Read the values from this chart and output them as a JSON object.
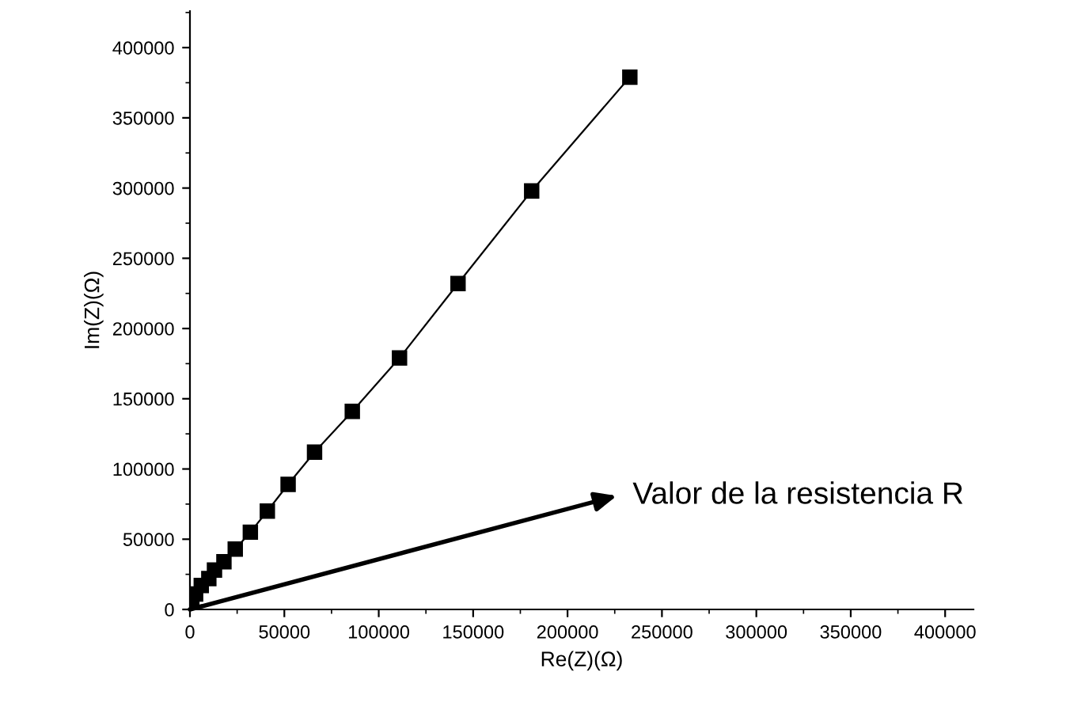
{
  "chart_data": {
    "type": "line",
    "xlabel": "Re(Z)(Ω)",
    "ylabel": "Im(Z)(Ω)",
    "x": [
      0,
      1000,
      3000,
      6000,
      10000,
      13000,
      18000,
      24000,
      32000,
      41000,
      52000,
      66000,
      86000,
      111000,
      142000,
      181000,
      233000
    ],
    "series": [
      {
        "color": "#000000",
        "values": [
          1000,
          6000,
          11000,
          17000,
          22000,
          28000,
          34000,
          43000,
          55000,
          70000,
          89000,
          112000,
          141000,
          179000,
          232000,
          298000,
          379000
        ]
      }
    ],
    "marker": "square",
    "line_style": "solid",
    "grid": false,
    "legend": false,
    "xlim": [
      0,
      415000
    ],
    "ylim": [
      0,
      426000
    ],
    "xticks": [
      0,
      50000,
      100000,
      150000,
      200000,
      250000,
      300000,
      350000,
      400000
    ],
    "yticks": [
      0,
      50000,
      100000,
      150000,
      200000,
      250000,
      300000,
      350000,
      400000
    ],
    "annotations": [
      "Valor de la resistencia R"
    ]
  }
}
